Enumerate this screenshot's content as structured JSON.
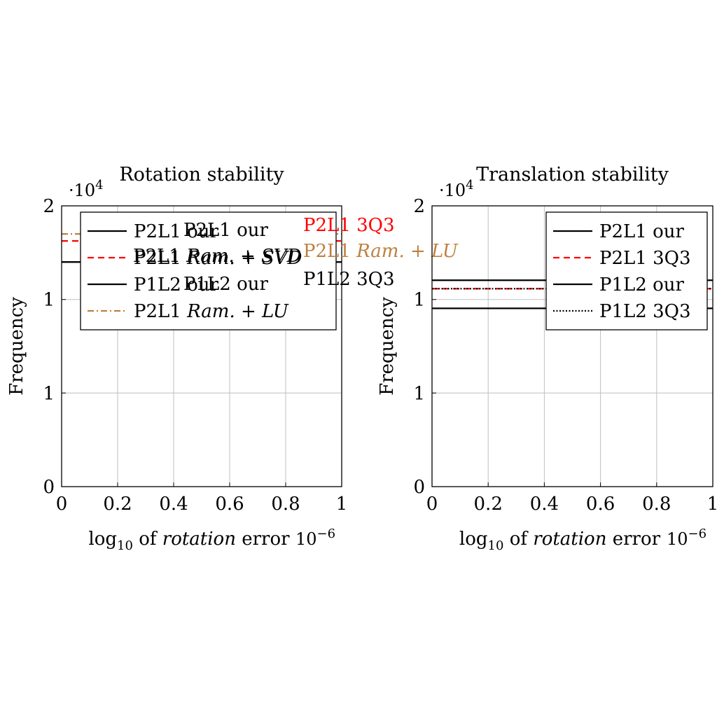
{
  "chart_data": [
    {
      "type": "line",
      "title": "Rotation stability",
      "xlabel": "log",
      "xlabel_sub": "10",
      "xlabel_of": " of ",
      "xlabel_ital": "rotation",
      "xlabel_end": " error",
      "ylabel": "Frequency",
      "x_exponent": "10",
      "x_exponent_sup": "−6",
      "y_exponent": "·10",
      "y_exponent_sup": "4",
      "xlim": [
        0,
        1
      ],
      "ylim": [
        0,
        2
      ],
      "x_ticks": [
        "0",
        "0.2",
        "0.4",
        "0.6",
        "0.8",
        "1"
      ],
      "y_ticks": [
        "0",
        "1",
        "1",
        "2"
      ],
      "y_tick_values": [
        0,
        0.667,
        1.333,
        2
      ],
      "grid": true,
      "legend_position": "top-right",
      "series": [
        {
          "name": "P2L1 our",
          "color": "#000000",
          "dash": "solid",
          "y": 1.6
        },
        {
          "name": "P2L1 Ram. + SVD",
          "color": "#ff0000",
          "dash": "dashed",
          "y": 1.75
        },
        {
          "name": "P1L2 our",
          "color": "#000000",
          "dash": "solid",
          "y": 1.6
        },
        {
          "name": "P2L1 Ram. + LU",
          "color": "#bf8040",
          "dash": "dashdot",
          "y": 1.8
        }
      ],
      "overflow_labels": [
        {
          "text": "P2L1 our",
          "color": "#000000"
        },
        {
          "text": "P2L1 3Q3",
          "color": "#ff0000"
        },
        {
          "text": "P2L1 ",
          "ital": "Ram. + SVD",
          "color": "#000000"
        },
        {
          "text": "P2L1 ",
          "ital": "Ram. + LU",
          "color": "#bf8040"
        },
        {
          "text": "P1L2 our",
          "color": "#000000"
        },
        {
          "text": "P1L2 3Q3",
          "color": "#000000"
        }
      ]
    },
    {
      "type": "line",
      "title": "Translation stability",
      "xlabel": "log",
      "xlabel_sub": "10",
      "xlabel_of": " of ",
      "xlabel_ital": "rotation",
      "xlabel_end": " error",
      "ylabel": "Frequency",
      "x_exponent": "10",
      "x_exponent_sup": "−6",
      "y_exponent": "·10",
      "y_exponent_sup": "4",
      "xlim": [
        0,
        1
      ],
      "ylim": [
        0,
        2
      ],
      "x_ticks": [
        "0",
        "0.2",
        "0.4",
        "0.6",
        "0.8",
        "1"
      ],
      "y_ticks": [
        "0",
        "1",
        "1",
        "2"
      ],
      "y_tick_values": [
        0,
        0.667,
        1.333,
        2
      ],
      "grid": true,
      "legend_position": "top-right",
      "series": [
        {
          "name": "P2L1 our",
          "color": "#000000",
          "dash": "solid",
          "y": 1.47
        },
        {
          "name": "P2L1 3Q3",
          "color": "#ff0000",
          "dash": "dashed",
          "y": 1.41
        },
        {
          "name": "P1L2 our",
          "color": "#000000",
          "dash": "solid",
          "y": 1.27
        },
        {
          "name": "P1L2 3Q3",
          "color": "#000000",
          "dash": "dotted",
          "y": 1.41
        }
      ]
    }
  ]
}
